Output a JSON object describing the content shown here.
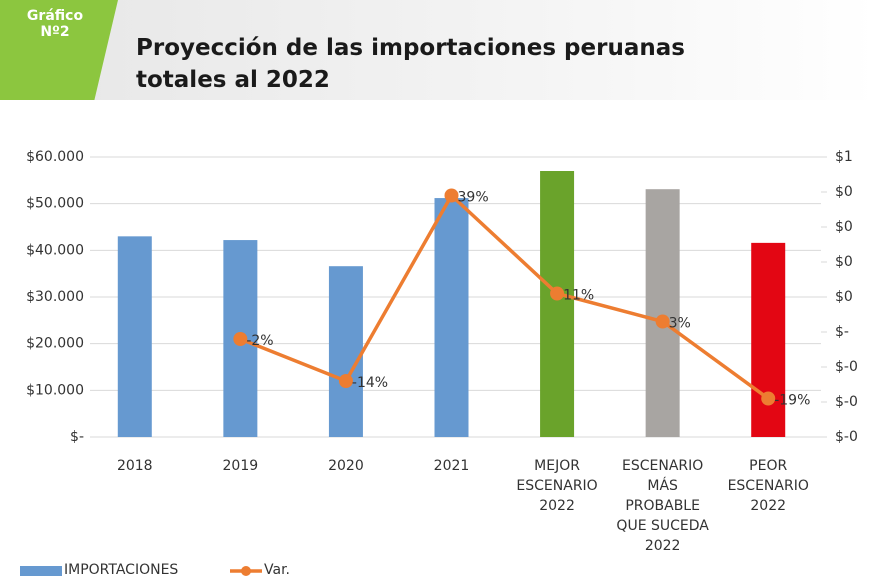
{
  "header": {
    "badge": "Gráfico\nNº2",
    "title": "Proyección de las importaciones peruanas\ntotales al 2022"
  },
  "chart_data": {
    "type": "combo",
    "categories": [
      "2018",
      "2019",
      "2020",
      "2021",
      "MEJOR\nESCENARIO\n2022",
      "ESCENARIO\nMÁS\nPROBABLE\nQUE SUCEDA\n2022",
      "PEOR\nESCENARIO\n2022"
    ],
    "series": [
      {
        "name": "IMPORTACIONES",
        "type": "bar",
        "color": "#6699d0",
        "colors": [
          "#6699d0",
          "#6699d0",
          "#6699d0",
          "#6699d0",
          "#6aa32b",
          "#a8a5a2",
          "#e30613"
        ],
        "values": [
          43000,
          42200,
          36600,
          51200,
          57000,
          53100,
          41600
        ]
      },
      {
        "name": "Var.",
        "type": "line",
        "axis": "y2",
        "color": "#ed7d31",
        "values": [
          null,
          -0.02,
          -0.14,
          0.39,
          0.11,
          0.03,
          -0.19
        ],
        "value_labels": [
          null,
          "-2%",
          "-14%",
          "39%",
          "11%",
          "3%",
          "-19%"
        ]
      }
    ],
    "ylim": [
      0,
      60000
    ],
    "yticks": [
      {
        "value": 0,
        "label": "$-"
      },
      {
        "value": 10000,
        "label": "$10.000"
      },
      {
        "value": 20000,
        "label": "$20.000"
      },
      {
        "value": 30000,
        "label": "$30.000"
      },
      {
        "value": 40000,
        "label": "$40.000"
      },
      {
        "value": 50000,
        "label": "$50.000"
      },
      {
        "value": 60000,
        "label": "$60.000"
      }
    ],
    "y2lim": [
      -0.3,
      0.5
    ],
    "y2ticks": [
      {
        "value": -0.3,
        "label": "$-0"
      },
      {
        "value": -0.2,
        "label": "$-0"
      },
      {
        "value": -0.1,
        "label": "$-0"
      },
      {
        "value": 0,
        "label": "$-"
      },
      {
        "value": 0.1,
        "label": "$0"
      },
      {
        "value": 0.2,
        "label": "$0"
      },
      {
        "value": 0.3,
        "label": "$0"
      },
      {
        "value": 0.4,
        "label": "$0"
      },
      {
        "value": 0.5,
        "label": "$1"
      }
    ],
    "grid": true,
    "legend": "bottom-left"
  }
}
